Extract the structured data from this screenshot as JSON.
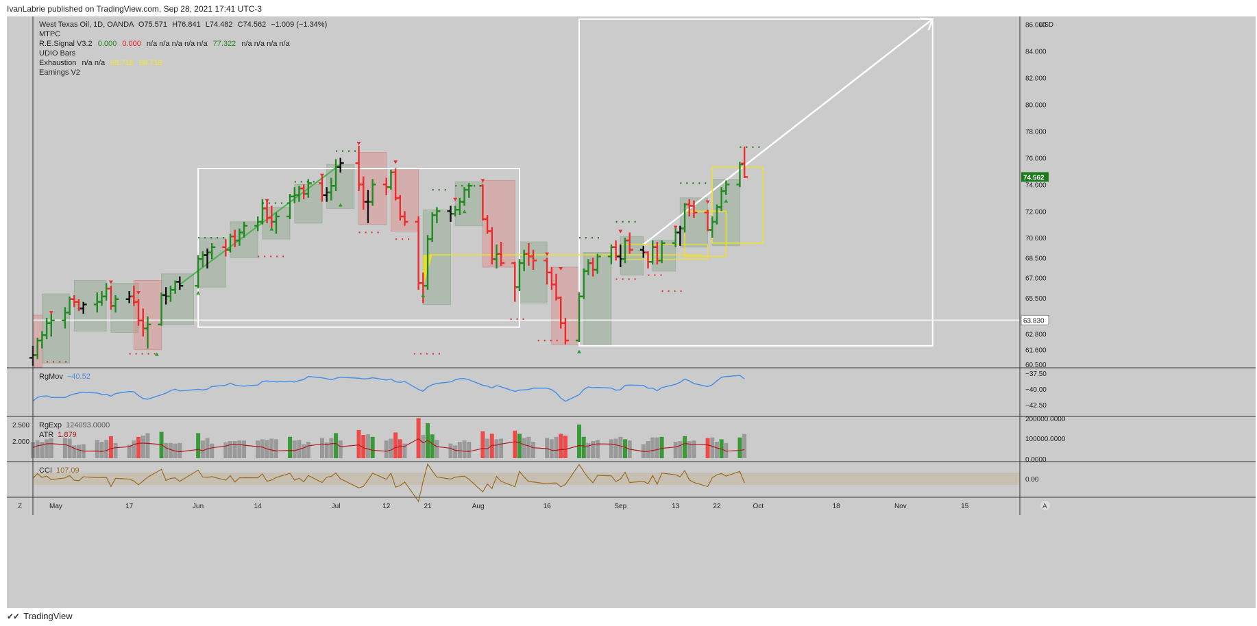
{
  "header": {
    "published": "IvanLabrie published on TradingView.com, Sep 28, 2021 17:41 UTC-3"
  },
  "footer": {
    "brand": "TradingView",
    "logo": "tradingview-logo-icon"
  },
  "legend": {
    "symbol": "West Texas Oil, 1D, OANDA",
    "o_label": "O",
    "o_value": "75.571",
    "h_label": "H",
    "h_value": "76.841",
    "l_label": "L",
    "l_value": "74.482",
    "c_label": "C",
    "c_value": "74.562",
    "change": "−1.009 (−1.34%)",
    "mtpc": "MTPC",
    "resignal_name": "R.E.Signal V3.2",
    "resignal_v1": "0.000",
    "resignal_v2": "0.000",
    "resignal_na": "n/a  n/a  n/a  n/a  n/a",
    "resignal_v3": "77.322",
    "resignal_na2": "n/a  n/a  n/a  n/a",
    "udio": "UDIO Bars",
    "exhaustion_name": "Exhaustion",
    "exhaustion_na": "n/a  n/a",
    "exhaustion_v1": "68.718",
    "exhaustion_v2": "68.718",
    "earnings": "Earnings V2"
  },
  "price_axis": {
    "currency": "USD",
    "ticks": [
      "86.000",
      "84.000",
      "82.000",
      "80.000",
      "78.000",
      "76.000",
      "74.000",
      "72.000",
      "70.000",
      "68.500",
      "67.000",
      "65.500",
      "63.830",
      "62.800",
      "61.600",
      "60.500"
    ],
    "current_price": "74.562",
    "line_price": "63.830"
  },
  "time_axis": {
    "ticks": [
      "May",
      "17",
      "Jun",
      "14",
      "Jul",
      "12",
      "21",
      "Aug",
      "16",
      "Sep",
      "13",
      "22",
      "Oct",
      "18",
      "Nov",
      "15"
    ],
    "left_button": "Z",
    "right_button": "A"
  },
  "rgmov": {
    "name": "RgMov",
    "value": "−40.52",
    "ticks": [
      "−37.50",
      "−40.00",
      "−42.50"
    ]
  },
  "rgexp": {
    "name": "RgExp",
    "value": "124093.0000",
    "ticks": [
      "200000.0000",
      "100000.0000",
      "0.0000"
    ],
    "left_ticks": [
      "2.500",
      "2.000"
    ]
  },
  "atr": {
    "name": "ATR",
    "value": "1.879"
  },
  "cci": {
    "name": "CCI",
    "value": "107.09",
    "ticks": [
      "0.00"
    ]
  },
  "colors": {
    "background": "#cbcbcb",
    "up": "#1f8a1f",
    "down": "#ee2a2a",
    "neutral": "#111111",
    "rgmov_line": "#4a90e2",
    "atr_line": "#b01919",
    "cci_line": "#9a6a1f",
    "highlight": "#f0e020",
    "current_badge": "#1b7a1b"
  },
  "chart_data": {
    "type": "ohlc",
    "title": "West Texas Oil, 1D, OANDA",
    "ylim": [
      60.2,
      86.6
    ],
    "x_start": "2021-04-26",
    "x_end": "2021-11-27",
    "series": [
      {
        "name": "West Texas Oil",
        "values": [
          [
            "2021-04-26",
            61.0,
            61.9,
            60.4,
            61.2
          ],
          [
            "2021-04-27",
            61.2,
            62.5,
            60.9,
            62.3
          ],
          [
            "2021-04-28",
            62.3,
            63.0,
            61.7,
            62.7
          ],
          [
            "2021-04-29",
            62.7,
            64.0,
            62.4,
            63.6
          ],
          [
            "2021-04-30",
            63.6,
            64.3,
            62.6,
            63.8
          ],
          [
            "2021-05-03",
            63.8,
            64.8,
            63.2,
            64.4
          ],
          [
            "2021-05-04",
            64.4,
            65.6,
            64.2,
            65.4
          ],
          [
            "2021-05-05",
            65.4,
            65.7,
            64.8,
            65.2
          ],
          [
            "2021-05-06",
            65.2,
            65.4,
            64.5,
            64.7
          ],
          [
            "2021-05-07",
            64.7,
            65.2,
            64.3,
            65.0
          ],
          [
            "2021-05-10",
            65.0,
            65.9,
            64.4,
            65.2
          ],
          [
            "2021-05-11",
            65.2,
            66.0,
            64.9,
            65.6
          ],
          [
            "2021-05-12",
            65.6,
            66.6,
            65.3,
            66.2
          ],
          [
            "2021-05-13",
            66.2,
            66.4,
            64.6,
            64.9
          ],
          [
            "2021-05-14",
            64.9,
            65.7,
            64.4,
            65.4
          ],
          [
            "2021-05-17",
            65.4,
            66.0,
            65.1,
            65.6
          ],
          [
            "2021-05-18",
            65.6,
            66.4,
            64.9,
            65.2
          ],
          [
            "2021-05-19",
            65.2,
            65.4,
            63.4,
            63.8
          ],
          [
            "2021-05-20",
            63.8,
            64.7,
            62.6,
            63.2
          ],
          [
            "2021-05-21",
            63.2,
            64.1,
            61.7,
            63.5
          ],
          [
            "2021-05-24",
            63.5,
            65.9,
            63.4,
            65.7
          ],
          [
            "2021-05-25",
            65.7,
            66.3,
            65.0,
            65.6
          ],
          [
            "2021-05-26",
            65.6,
            66.4,
            65.2,
            66.1
          ],
          [
            "2021-05-27",
            66.1,
            66.8,
            65.8,
            66.7
          ],
          [
            "2021-05-28",
            66.7,
            67.1,
            66.1,
            66.4
          ],
          [
            "2021-06-01",
            66.4,
            68.7,
            66.2,
            68.4
          ],
          [
            "2021-06-02",
            68.4,
            69.0,
            67.8,
            68.7
          ],
          [
            "2021-06-03",
            68.7,
            69.2,
            67.7,
            68.9
          ],
          [
            "2021-06-04",
            68.9,
            69.6,
            68.4,
            69.3
          ],
          [
            "2021-06-07",
            69.3,
            69.9,
            68.6,
            69.1
          ],
          [
            "2021-06-08",
            69.1,
            70.3,
            68.9,
            70.1
          ],
          [
            "2021-06-09",
            70.1,
            70.6,
            69.3,
            69.8
          ],
          [
            "2021-06-10",
            69.8,
            70.7,
            69.4,
            70.4
          ],
          [
            "2021-06-11",
            70.4,
            71.2,
            70.0,
            70.9
          ],
          [
            "2021-06-14",
            70.9,
            71.6,
            70.5,
            71.2
          ],
          [
            "2021-06-15",
            71.2,
            72.9,
            71.0,
            72.2
          ],
          [
            "2021-06-16",
            72.2,
            72.8,
            71.1,
            71.5
          ],
          [
            "2021-06-17",
            71.5,
            72.4,
            70.6,
            71.2
          ],
          [
            "2021-06-18",
            71.2,
            71.9,
            70.3,
            71.6
          ],
          [
            "2021-06-21",
            71.6,
            73.3,
            71.4,
            73.1
          ],
          [
            "2021-06-22",
            73.1,
            73.8,
            72.6,
            73.2
          ],
          [
            "2021-06-23",
            73.2,
            73.9,
            72.7,
            73.7
          ],
          [
            "2021-06-24",
            73.7,
            74.0,
            72.9,
            73.3
          ],
          [
            "2021-06-25",
            73.3,
            74.4,
            73.0,
            74.1
          ],
          [
            "2021-06-28",
            74.1,
            74.6,
            72.7,
            73.2
          ],
          [
            "2021-06-29",
            73.2,
            73.8,
            72.7,
            73.4
          ],
          [
            "2021-06-30",
            73.4,
            74.5,
            72.8,
            73.9
          ],
          [
            "2021-07-01",
            73.9,
            75.9,
            73.5,
            75.3
          ],
          [
            "2021-07-02",
            75.3,
            76.0,
            74.9,
            75.6
          ],
          [
            "2021-07-06",
            75.6,
            76.9,
            73.5,
            74.0
          ],
          [
            "2021-07-07",
            74.0,
            74.6,
            72.1,
            72.7
          ],
          [
            "2021-07-08",
            72.7,
            73.6,
            71.1,
            72.7
          ],
          [
            "2021-07-09",
            72.7,
            74.4,
            72.4,
            74.0
          ],
          [
            "2021-07-12",
            74.0,
            74.5,
            73.2,
            73.8
          ],
          [
            "2021-07-13",
            73.8,
            75.1,
            73.6,
            74.9
          ],
          [
            "2021-07-14",
            74.9,
            75.2,
            72.8,
            73.0
          ],
          [
            "2021-07-15",
            73.0,
            73.2,
            71.3,
            71.6
          ],
          [
            "2021-07-16",
            71.6,
            72.0,
            70.9,
            71.2
          ],
          [
            "2021-07-19",
            71.2,
            71.6,
            66.1,
            66.6
          ],
          [
            "2021-07-20",
            66.6,
            67.4,
            65.1,
            66.4
          ],
          [
            "2021-07-21",
            66.4,
            70.2,
            66.1,
            69.9
          ],
          [
            "2021-07-22",
            69.9,
            71.9,
            69.7,
            71.7
          ],
          [
            "2021-07-23",
            71.7,
            72.3,
            71.1,
            72.0
          ],
          [
            "2021-07-26",
            72.0,
            72.4,
            71.2,
            71.8
          ],
          [
            "2021-07-27",
            71.8,
            72.4,
            71.6,
            72.1
          ],
          [
            "2021-07-28",
            72.1,
            73.0,
            71.7,
            72.7
          ],
          [
            "2021-07-29",
            72.7,
            73.8,
            72.4,
            73.6
          ],
          [
            "2021-07-30",
            73.6,
            74.1,
            73.0,
            73.9
          ],
          [
            "2021-08-02",
            73.9,
            74.0,
            71.3,
            71.4
          ],
          [
            "2021-08-03",
            71.4,
            71.7,
            70.3,
            70.5
          ],
          [
            "2021-08-04",
            70.5,
            70.8,
            68.0,
            68.4
          ],
          [
            "2021-08-05",
            68.4,
            69.5,
            67.7,
            68.8
          ],
          [
            "2021-08-06",
            68.8,
            69.7,
            67.9,
            68.1
          ],
          [
            "2021-08-09",
            68.1,
            68.2,
            65.2,
            66.3
          ],
          [
            "2021-08-10",
            66.3,
            68.4,
            66.0,
            68.1
          ],
          [
            "2021-08-11",
            68.1,
            69.1,
            67.5,
            68.8
          ],
          [
            "2021-08-12",
            68.8,
            69.6,
            67.9,
            68.6
          ],
          [
            "2021-08-13",
            68.6,
            69.1,
            67.6,
            68.3
          ],
          [
            "2021-08-16",
            68.3,
            68.5,
            66.5,
            67.4
          ],
          [
            "2021-08-17",
            67.4,
            67.8,
            66.1,
            66.5
          ],
          [
            "2021-08-18",
            66.5,
            67.3,
            65.3,
            65.5
          ],
          [
            "2021-08-19",
            65.5,
            65.6,
            63.2,
            63.6
          ],
          [
            "2021-08-20",
            63.6,
            64.0,
            62.0,
            62.3
          ],
          [
            "2021-08-23",
            62.3,
            65.9,
            62.2,
            65.6
          ],
          [
            "2021-08-24",
            65.6,
            67.7,
            65.4,
            67.5
          ],
          [
            "2021-08-25",
            67.5,
            68.4,
            67.2,
            68.1
          ],
          [
            "2021-08-26",
            68.1,
            68.5,
            67.1,
            67.6
          ],
          [
            "2021-08-27",
            67.6,
            68.8,
            67.3,
            68.6
          ],
          [
            "2021-08-30",
            68.6,
            69.5,
            68.0,
            69.3
          ],
          [
            "2021-08-31",
            69.3,
            69.8,
            68.3,
            68.6
          ],
          [
            "2021-09-01",
            68.6,
            69.5,
            67.8,
            68.4
          ],
          [
            "2021-09-02",
            68.4,
            70.0,
            68.1,
            69.8
          ],
          [
            "2021-09-03",
            69.8,
            70.4,
            68.8,
            69.1
          ],
          [
            "2021-09-06",
            69.1,
            69.4,
            68.5,
            68.9
          ],
          [
            "2021-09-07",
            68.9,
            69.0,
            67.7,
            68.2
          ],
          [
            "2021-09-08",
            68.2,
            69.8,
            68.0,
            69.3
          ],
          [
            "2021-09-09",
            69.3,
            69.7,
            68.0,
            68.3
          ],
          [
            "2021-09-10",
            68.3,
            69.8,
            68.1,
            69.6
          ],
          [
            "2021-09-13",
            69.6,
            70.8,
            69.3,
            70.4
          ],
          [
            "2021-09-14",
            70.4,
            70.9,
            69.4,
            70.7
          ],
          [
            "2021-09-15",
            70.7,
            72.6,
            70.4,
            72.5
          ],
          [
            "2021-09-16",
            72.5,
            72.9,
            71.6,
            72.4
          ],
          [
            "2021-09-17",
            72.4,
            72.8,
            71.5,
            71.9
          ],
          [
            "2021-09-20",
            71.9,
            72.1,
            70.5,
            70.6
          ],
          [
            "2021-09-21",
            70.6,
            71.6,
            70.0,
            71.2
          ],
          [
            "2021-09-22",
            71.2,
            72.5,
            71.0,
            72.3
          ],
          [
            "2021-09-23",
            72.3,
            73.8,
            72.0,
            73.5
          ],
          [
            "2021-09-24",
            73.5,
            74.3,
            73.2,
            74.0
          ],
          [
            "2021-09-27",
            74.0,
            75.7,
            73.8,
            75.5
          ],
          [
            "2021-09-28",
            75.571,
            76.841,
            74.482,
            74.562
          ]
        ]
      }
    ]
  }
}
